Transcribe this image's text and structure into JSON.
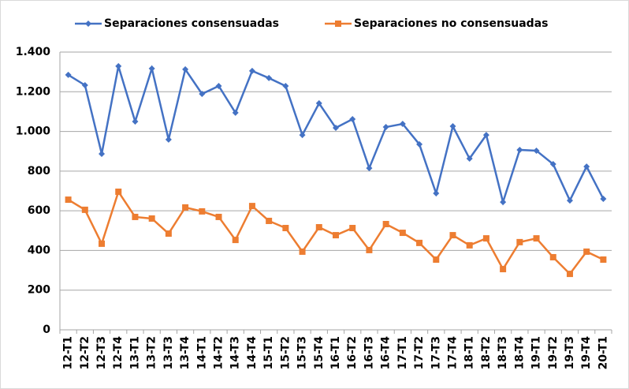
{
  "chart_data": {
    "type": "line",
    "categories": [
      "12-T1",
      "12-T2",
      "12-T3",
      "12-T4",
      "13-T1",
      "13-T2",
      "13-T3",
      "13-T4",
      "14-T1",
      "14-T2",
      "14-T3",
      "14-T4",
      "15-T1",
      "15-T2",
      "15-T3",
      "15-T4",
      "16-T1",
      "16-T2",
      "16-T3",
      "16-T4",
      "17-T1",
      "17-T2",
      "17-T3",
      "17-T4",
      "18-T1",
      "18-T2",
      "18-T3",
      "18-T4",
      "19-T1",
      "19-T2",
      "19-T3",
      "19-T4",
      "20-T1"
    ],
    "series": [
      {
        "name": "Separaciones consensuadas",
        "color": "#4472c4",
        "marker": "diamond",
        "values": [
          1285,
          1233,
          887,
          1329,
          1050,
          1317,
          959,
          1313,
          1189,
          1229,
          1094,
          1305,
          1269,
          1229,
          982,
          1142,
          1018,
          1062,
          815,
          1022,
          1038,
          935,
          688,
          1026,
          863,
          982,
          644,
          907,
          903,
          835,
          652,
          823,
          660
        ]
      },
      {
        "name": "Separaciones no consensuadas",
        "color": "#ed7d31",
        "marker": "square",
        "values": [
          656,
          605,
          434,
          696,
          569,
          561,
          485,
          617,
          597,
          569,
          453,
          624,
          549,
          513,
          394,
          517,
          477,
          513,
          402,
          533,
          489,
          438,
          354,
          477,
          426,
          461,
          306,
          442,
          461,
          366,
          282,
          394,
          354
        ]
      }
    ],
    "ylim": [
      0,
      1400
    ],
    "yticks": [
      0,
      200,
      400,
      600,
      800,
      {
        "value": 1000,
        "label": "1.000"
      },
      {
        "value": 1200,
        "label": "1.200"
      },
      {
        "value": 1400,
        "label": "1.400"
      }
    ],
    "grid": true,
    "legend": "top"
  }
}
